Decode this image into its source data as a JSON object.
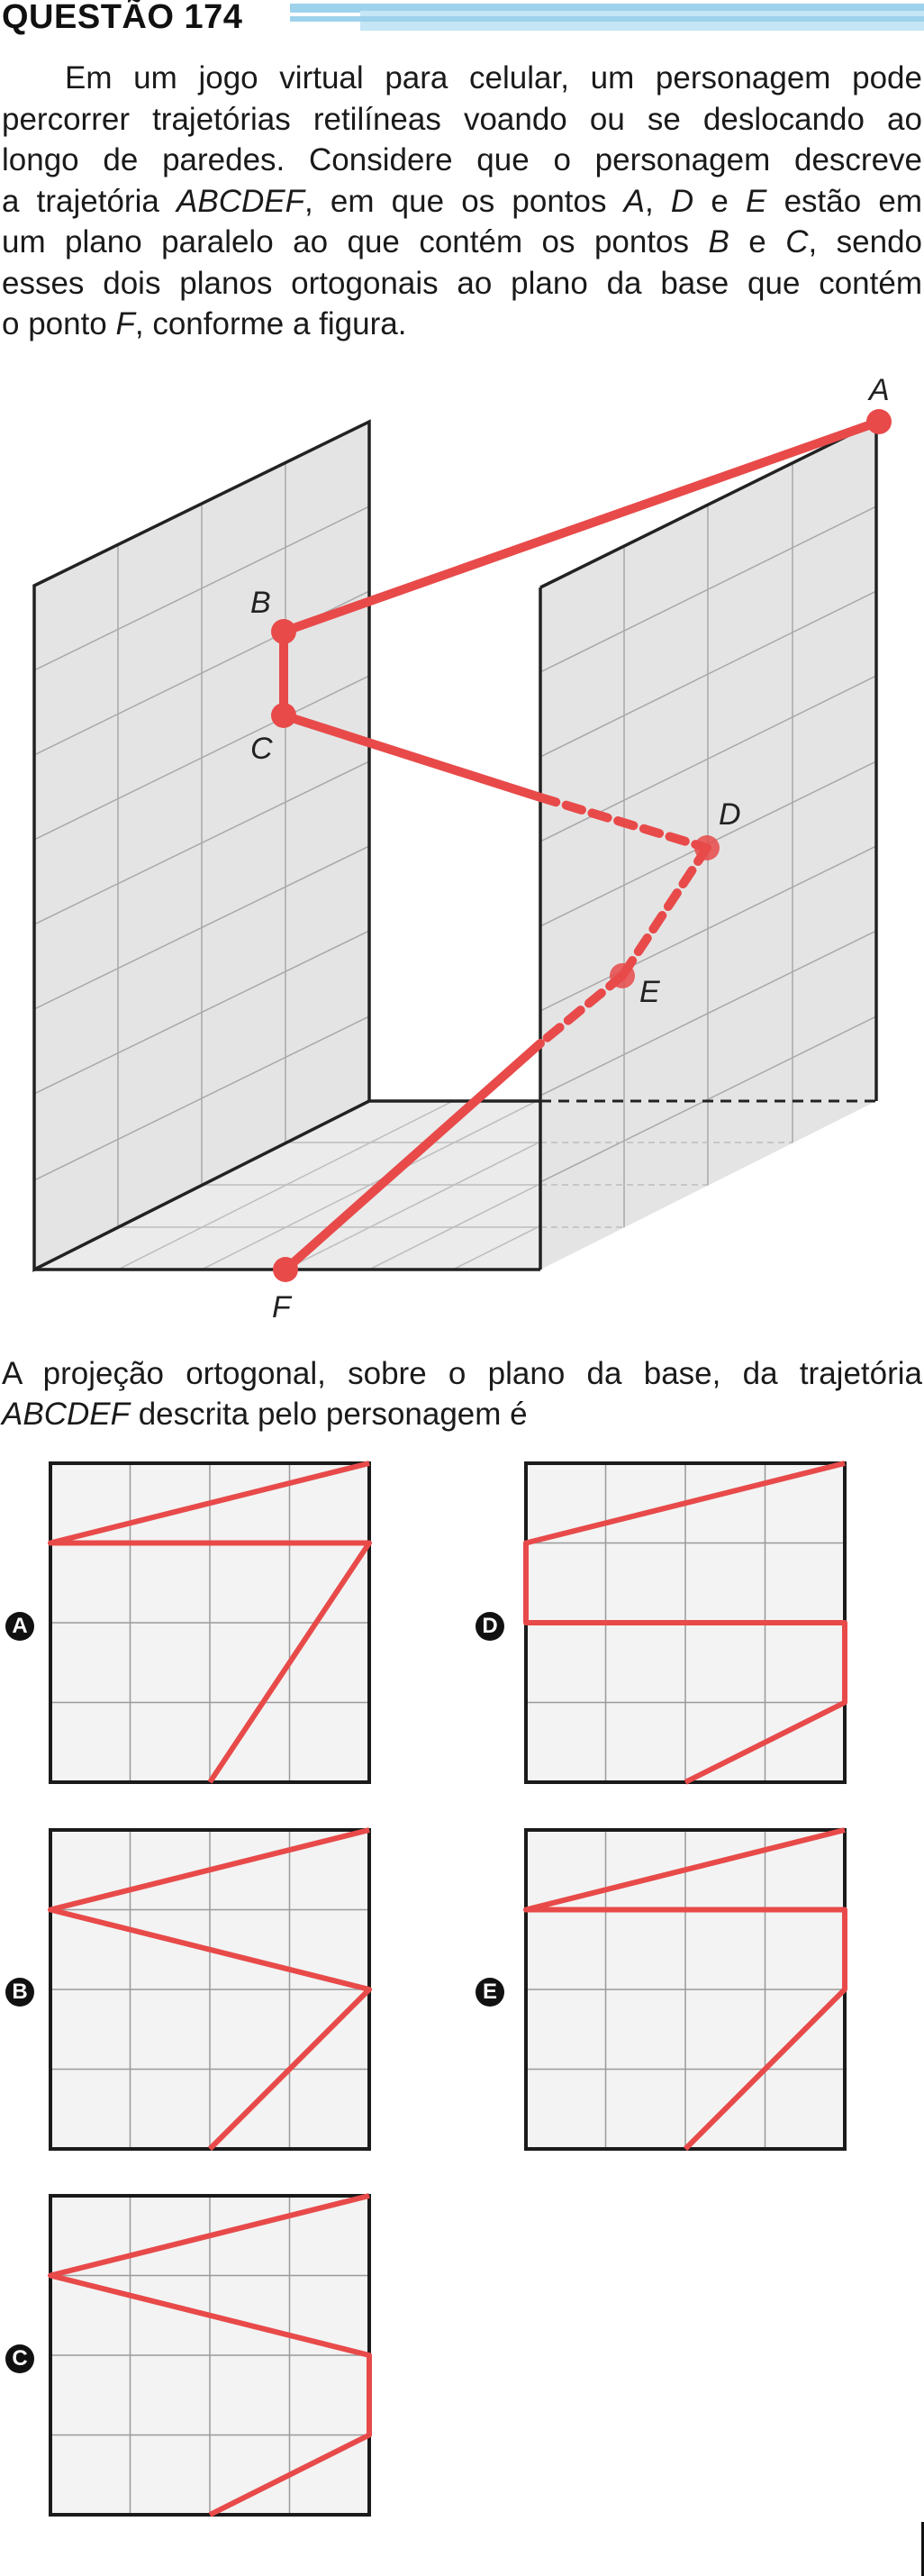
{
  "question": {
    "title": "QUESTÃO 174",
    "statement_lines": [
      {
        "parts": [
          {
            "t": "Em um jogo virtual para celular, um personagem pode"
          }
        ],
        "indent": true
      },
      {
        "parts": [
          {
            "t": "percorrer trajetórias retilíneas voando ou se deslocando ao"
          }
        ]
      },
      {
        "parts": [
          {
            "t": "longo de paredes. Considere que o personagem descreve"
          }
        ]
      },
      {
        "parts": [
          {
            "t": "a trajetória "
          },
          {
            "t": "ABCDEF",
            "i": true
          },
          {
            "t": ", em que os pontos "
          },
          {
            "t": "A",
            "i": true
          },
          {
            "t": ", "
          },
          {
            "t": "D",
            "i": true
          },
          {
            "t": " e "
          },
          {
            "t": "E",
            "i": true
          },
          {
            "t": " estão em"
          }
        ]
      },
      {
        "parts": [
          {
            "t": "um plano paralelo ao que contém os pontos "
          },
          {
            "t": "B",
            "i": true
          },
          {
            "t": " e "
          },
          {
            "t": "C",
            "i": true
          },
          {
            "t": ", sendo"
          }
        ]
      },
      {
        "parts": [
          {
            "t": "esses dois planos ortogonais ao plano da base que contém"
          }
        ]
      },
      {
        "parts": [
          {
            "t": "o ponto "
          },
          {
            "t": "F",
            "i": true
          },
          {
            "t": ", conforme a figura."
          }
        ],
        "last": true
      }
    ],
    "prompt_lines": [
      {
        "parts": [
          {
            "t": "A projeção ortogonal, sobre o plano da base, da trajetória"
          }
        ]
      },
      {
        "parts": [
          {
            "t": "ABCDEF",
            "i": true
          },
          {
            "t": " descrita pelo personagem é"
          }
        ],
        "last": true
      }
    ]
  },
  "figure": {
    "point_labels": {
      "A": "A",
      "B": "B",
      "C": "C",
      "D": "D",
      "E": "E",
      "F": "F"
    },
    "path_color": "#e84a4a",
    "wall_color": "#e4e4e4"
  },
  "options": [
    {
      "letter": "A",
      "path_color": "#e84a4a"
    },
    {
      "letter": "B",
      "path_color": "#e84a4a"
    },
    {
      "letter": "C",
      "path_color": "#e84a4a"
    },
    {
      "letter": "D",
      "path_color": "#e84a4a"
    },
    {
      "letter": "E",
      "path_color": "#e84a4a"
    }
  ]
}
